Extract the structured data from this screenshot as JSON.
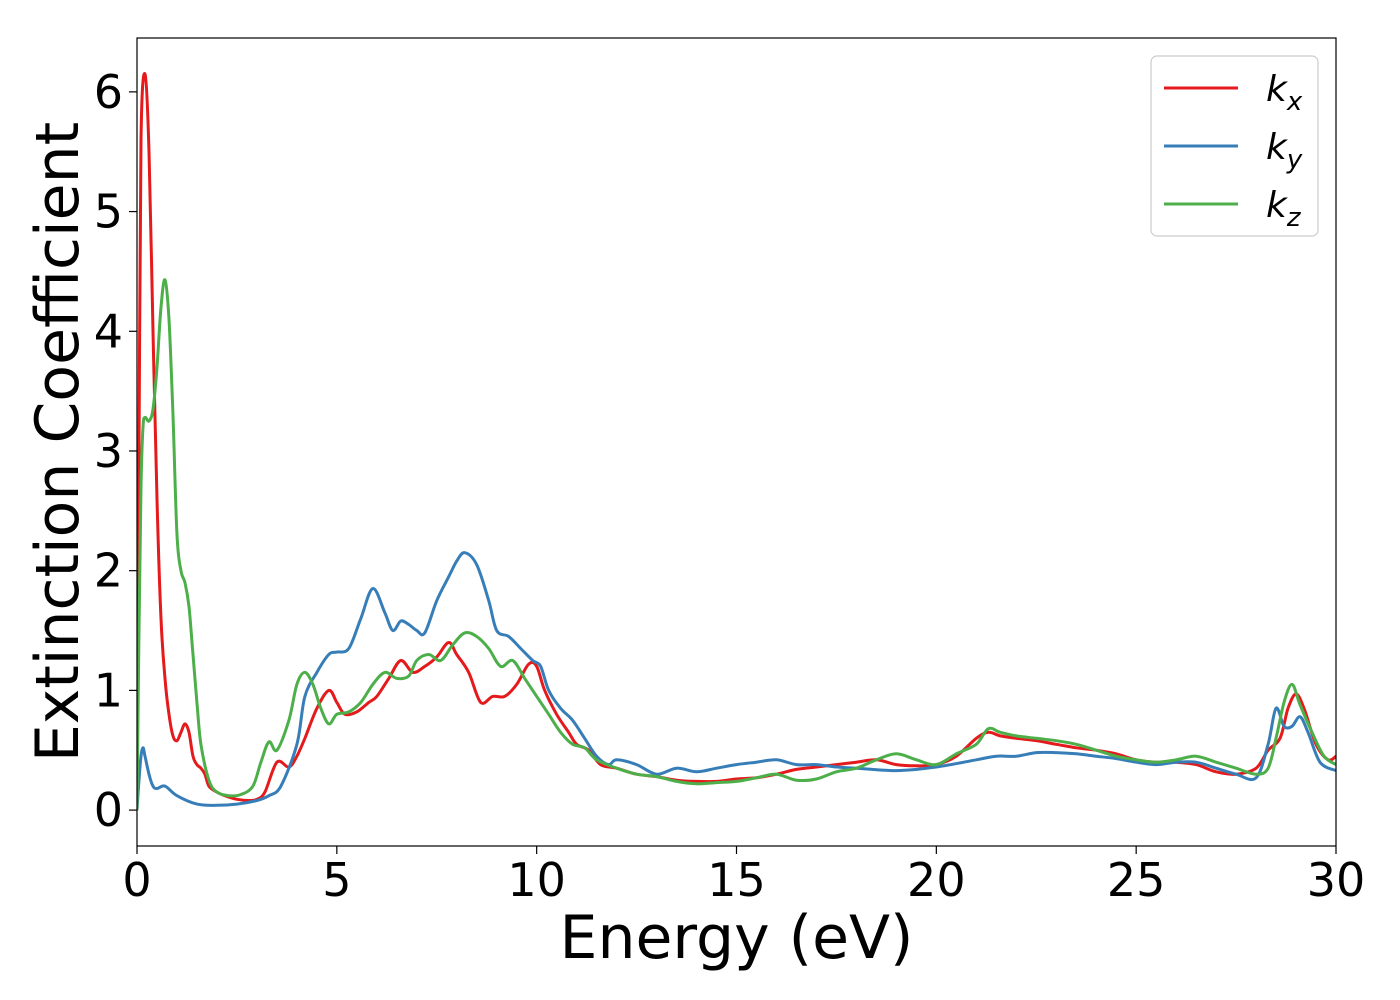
{
  "chart_data": {
    "type": "line",
    "title": "",
    "xlabel": "Energy (eV)",
    "ylabel": "Extinction Coefficient",
    "xlim": [
      0,
      30
    ],
    "ylim": [
      -0.3,
      6.45
    ],
    "xticks": [
      0,
      5,
      10,
      15,
      20,
      25,
      30
    ],
    "yticks": [
      0,
      1,
      2,
      3,
      4,
      5,
      6
    ],
    "grid": false,
    "legend_position": "top-right",
    "series": [
      {
        "name": "k",
        "subscript": "x",
        "color": "#e41a1c",
        "x": [
          0,
          0.05,
          0.1,
          0.2,
          0.3,
          0.4,
          0.5,
          0.6,
          0.7,
          0.8,
          0.9,
          1.0,
          1.1,
          1.2,
          1.3,
          1.4,
          1.5,
          1.6,
          1.7,
          1.8,
          2.0,
          2.2,
          2.5,
          2.8,
          3.0,
          3.2,
          3.5,
          3.8,
          4.0,
          4.2,
          4.5,
          4.8,
          5.0,
          5.2,
          5.5,
          5.8,
          6.0,
          6.3,
          6.6,
          6.9,
          7.2,
          7.5,
          7.8,
          8.0,
          8.3,
          8.6,
          8.9,
          9.2,
          9.5,
          9.8,
          10.0,
          10.2,
          10.5,
          10.8,
          11.0,
          11.3,
          11.6,
          12.0,
          12.5,
          13.0,
          13.5,
          14.0,
          14.5,
          15.0,
          15.5,
          16.0,
          16.5,
          17.0,
          17.5,
          18.0,
          18.5,
          19.0,
          19.5,
          20.0,
          20.5,
          21.0,
          21.3,
          21.6,
          22.0,
          22.5,
          23.0,
          23.5,
          24.0,
          24.5,
          25.0,
          25.5,
          26.0,
          26.5,
          27.0,
          27.5,
          28.0,
          28.3,
          28.6,
          28.8,
          29.0,
          29.2,
          29.5,
          29.8,
          30.0
        ],
        "y": [
          0.3,
          3.0,
          5.6,
          6.15,
          5.5,
          4.0,
          2.6,
          1.6,
          1.1,
          0.8,
          0.62,
          0.58,
          0.65,
          0.72,
          0.65,
          0.45,
          0.38,
          0.35,
          0.3,
          0.2,
          0.15,
          0.12,
          0.09,
          0.08,
          0.09,
          0.15,
          0.4,
          0.36,
          0.45,
          0.6,
          0.85,
          1.0,
          0.9,
          0.8,
          0.82,
          0.9,
          0.95,
          1.1,
          1.25,
          1.15,
          1.2,
          1.28,
          1.4,
          1.3,
          1.15,
          0.9,
          0.95,
          0.95,
          1.05,
          1.22,
          1.2,
          1.0,
          0.8,
          0.65,
          0.55,
          0.5,
          0.38,
          0.35,
          0.3,
          0.28,
          0.25,
          0.24,
          0.24,
          0.26,
          0.27,
          0.3,
          0.34,
          0.36,
          0.38,
          0.4,
          0.42,
          0.38,
          0.37,
          0.38,
          0.45,
          0.6,
          0.65,
          0.62,
          0.6,
          0.58,
          0.55,
          0.52,
          0.5,
          0.47,
          0.42,
          0.4,
          0.4,
          0.38,
          0.32,
          0.3,
          0.35,
          0.5,
          0.6,
          0.85,
          0.97,
          0.85,
          0.55,
          0.42,
          0.45
        ]
      },
      {
        "name": "k",
        "subscript": "y",
        "color": "#377eb8",
        "x": [
          0,
          0.05,
          0.1,
          0.15,
          0.2,
          0.3,
          0.4,
          0.5,
          0.7,
          1.0,
          1.5,
          2.0,
          2.5,
          3.0,
          3.3,
          3.6,
          4.0,
          4.2,
          4.5,
          4.8,
          5.0,
          5.3,
          5.6,
          5.9,
          6.2,
          6.4,
          6.6,
          6.8,
          7.0,
          7.2,
          7.5,
          7.8,
          8.0,
          8.2,
          8.5,
          8.8,
          9.0,
          9.3,
          9.6,
          9.9,
          10.1,
          10.3,
          10.6,
          10.9,
          11.2,
          11.5,
          11.8,
          12.0,
          12.5,
          13.0,
          13.5,
          14.0,
          14.5,
          15.0,
          15.5,
          16.0,
          16.5,
          17.0,
          17.5,
          18.0,
          19.0,
          20.0,
          21.0,
          21.5,
          22.0,
          22.5,
          23.0,
          23.5,
          24.0,
          24.5,
          25.0,
          25.5,
          26.0,
          26.5,
          27.0,
          27.5,
          28.0,
          28.3,
          28.5,
          28.7,
          28.9,
          29.1,
          29.3,
          29.6,
          30.0
        ],
        "y": [
          0.0,
          0.25,
          0.45,
          0.52,
          0.45,
          0.3,
          0.2,
          0.18,
          0.2,
          0.12,
          0.05,
          0.04,
          0.05,
          0.08,
          0.12,
          0.2,
          0.55,
          0.95,
          1.15,
          1.3,
          1.32,
          1.35,
          1.6,
          1.85,
          1.65,
          1.5,
          1.58,
          1.55,
          1.5,
          1.48,
          1.75,
          1.95,
          2.08,
          2.15,
          2.05,
          1.75,
          1.5,
          1.45,
          1.35,
          1.25,
          1.2,
          1.0,
          0.85,
          0.75,
          0.6,
          0.45,
          0.38,
          0.42,
          0.38,
          0.3,
          0.35,
          0.32,
          0.35,
          0.38,
          0.4,
          0.42,
          0.38,
          0.38,
          0.36,
          0.35,
          0.33,
          0.36,
          0.42,
          0.45,
          0.45,
          0.48,
          0.48,
          0.47,
          0.45,
          0.43,
          0.4,
          0.38,
          0.4,
          0.4,
          0.35,
          0.3,
          0.27,
          0.55,
          0.85,
          0.7,
          0.7,
          0.78,
          0.65,
          0.4,
          0.33
        ]
      },
      {
        "name": "k",
        "subscript": "z",
        "color": "#4daf4a",
        "x": [
          0,
          0.05,
          0.1,
          0.15,
          0.2,
          0.3,
          0.4,
          0.5,
          0.6,
          0.7,
          0.8,
          0.9,
          1.0,
          1.1,
          1.2,
          1.3,
          1.4,
          1.5,
          1.6,
          1.8,
          2.0,
          2.3,
          2.6,
          2.9,
          3.1,
          3.3,
          3.5,
          3.8,
          4.0,
          4.2,
          4.4,
          4.6,
          4.8,
          5.0,
          5.3,
          5.6,
          5.9,
          6.2,
          6.5,
          6.8,
          7.0,
          7.3,
          7.6,
          7.9,
          8.2,
          8.5,
          8.8,
          9.1,
          9.4,
          9.7,
          10.0,
          10.3,
          10.6,
          10.9,
          11.2,
          11.5,
          12.0,
          12.5,
          13.0,
          13.5,
          14.0,
          14.5,
          15.0,
          15.5,
          16.0,
          16.5,
          17.0,
          17.5,
          18.0,
          18.5,
          19.0,
          19.5,
          20.0,
          20.5,
          21.0,
          21.3,
          21.6,
          22.0,
          22.5,
          23.0,
          23.5,
          24.0,
          24.5,
          25.0,
          25.5,
          26.0,
          26.5,
          27.0,
          27.5,
          28.0,
          28.3,
          28.5,
          28.7,
          28.9,
          29.1,
          29.4,
          29.7,
          30.0
        ],
        "y": [
          0.0,
          1.5,
          2.7,
          3.2,
          3.28,
          3.25,
          3.35,
          3.7,
          4.2,
          4.43,
          4.1,
          3.3,
          2.3,
          2.0,
          1.9,
          1.7,
          1.3,
          0.9,
          0.55,
          0.25,
          0.15,
          0.12,
          0.13,
          0.2,
          0.4,
          0.57,
          0.5,
          0.75,
          1.05,
          1.15,
          1.05,
          0.85,
          0.72,
          0.8,
          0.82,
          0.9,
          1.05,
          1.15,
          1.1,
          1.12,
          1.25,
          1.3,
          1.25,
          1.38,
          1.48,
          1.45,
          1.35,
          1.2,
          1.25,
          1.1,
          0.95,
          0.8,
          0.65,
          0.55,
          0.52,
          0.42,
          0.35,
          0.3,
          0.28,
          0.24,
          0.22,
          0.23,
          0.24,
          0.27,
          0.3,
          0.25,
          0.26,
          0.32,
          0.35,
          0.42,
          0.47,
          0.42,
          0.38,
          0.47,
          0.55,
          0.68,
          0.65,
          0.62,
          0.6,
          0.58,
          0.55,
          0.5,
          0.45,
          0.42,
          0.4,
          0.42,
          0.45,
          0.4,
          0.35,
          0.3,
          0.35,
          0.6,
          0.9,
          1.05,
          0.88,
          0.65,
          0.45,
          0.38
        ]
      }
    ]
  }
}
